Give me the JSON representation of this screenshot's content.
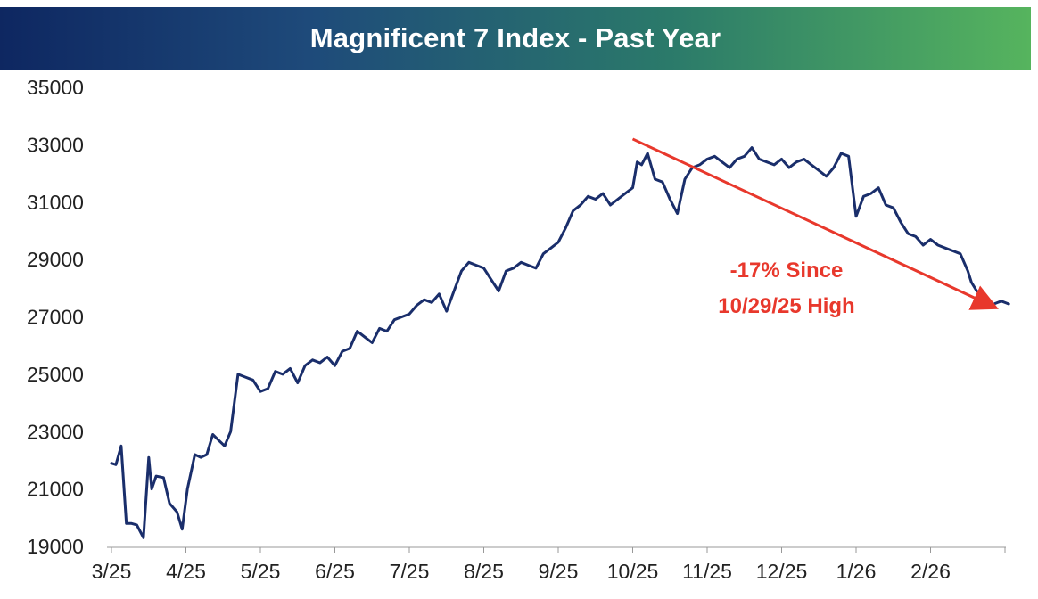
{
  "chart_data": {
    "type": "line",
    "title": "Magnificent 7 Index - Past Year",
    "xlabel": "",
    "ylabel": "",
    "ylim": [
      19000,
      35000
    ],
    "yticks": [
      19000,
      21000,
      23000,
      25000,
      27000,
      29000,
      31000,
      33000,
      35000
    ],
    "ytick_labels": [
      "19000",
      "21000",
      "23000",
      "25000",
      "27000",
      "29000",
      "31000",
      "33000",
      "35000"
    ],
    "xticks": [
      "3/25",
      "4/25",
      "5/25",
      "6/25",
      "7/25",
      "8/25",
      "9/25",
      "10/25",
      "11/25",
      "12/25",
      "1/26",
      "2/26"
    ],
    "grid": false,
    "legend": "none",
    "line_color": "#1a2e6b",
    "series": [
      {
        "name": "",
        "x_unit": "months since 3/25",
        "x": [
          0,
          0.06,
          0.13,
          0.2,
          0.27,
          0.34,
          0.43,
          0.5,
          0.54,
          0.6,
          0.7,
          0.78,
          0.88,
          0.95,
          1.02,
          1.12,
          1.2,
          1.28,
          1.36,
          1.44,
          1.52,
          1.6,
          1.7,
          1.8,
          1.9,
          2.0,
          2.1,
          2.2,
          2.3,
          2.4,
          2.5,
          2.6,
          2.7,
          2.8,
          2.9,
          3.0,
          3.1,
          3.2,
          3.3,
          3.4,
          3.5,
          3.6,
          3.7,
          3.8,
          3.9,
          4.0,
          4.1,
          4.2,
          4.3,
          4.4,
          4.5,
          4.6,
          4.7,
          4.8,
          4.9,
          5.0,
          5.1,
          5.2,
          5.3,
          5.4,
          5.5,
          5.6,
          5.7,
          5.8,
          5.9,
          6.0,
          6.1,
          6.2,
          6.3,
          6.4,
          6.5,
          6.6,
          6.7,
          6.8,
          6.9,
          7.0,
          7.06,
          7.12,
          7.2,
          7.3,
          7.4,
          7.5,
          7.6,
          7.7,
          7.8,
          7.9,
          8.0,
          8.1,
          8.2,
          8.3,
          8.4,
          8.5,
          8.6,
          8.7,
          8.8,
          8.9,
          9.0,
          9.1,
          9.2,
          9.3,
          9.4,
          9.5,
          9.6,
          9.7,
          9.8,
          9.9,
          10.0,
          10.1,
          10.2,
          10.3,
          10.4,
          10.5,
          10.6,
          10.7,
          10.8,
          10.9,
          11.0,
          11.1,
          11.2,
          11.3,
          11.4,
          11.5,
          11.55,
          11.62,
          11.68,
          11.74,
          11.8,
          11.85,
          11.9,
          11.95,
          12.0,
          12.05
        ],
        "values": [
          21900,
          21850,
          22500,
          19800,
          19800,
          19750,
          19300,
          22100,
          21000,
          21450,
          21400,
          20500,
          20200,
          19600,
          21000,
          22200,
          22100,
          22200,
          22900,
          22700,
          22500,
          23000,
          25000,
          24900,
          24800,
          24400,
          24500,
          25100,
          25000,
          25200,
          24700,
          25300,
          25500,
          25400,
          25600,
          25300,
          25800,
          25900,
          26500,
          26300,
          26100,
          26600,
          26500,
          26900,
          27000,
          27100,
          27400,
          27600,
          27500,
          27800,
          27200,
          27900,
          28600,
          28900,
          28800,
          28700,
          28300,
          27900,
          28600,
          28700,
          28900,
          28800,
          28700,
          29200,
          29400,
          29600,
          30100,
          30700,
          30900,
          31200,
          31100,
          31300,
          30900,
          31100,
          31300,
          31500,
          32400,
          32300,
          32700,
          31800,
          31700,
          31100,
          30600,
          31800,
          32200,
          32300,
          32500,
          32600,
          32400,
          32200,
          32500,
          32600,
          32900,
          32500,
          32400,
          32300,
          32500,
          32200,
          32400,
          32500,
          32300,
          32100,
          31900,
          32200,
          32700,
          32600,
          30500,
          31200,
          31300,
          31500,
          30900,
          30800,
          30300,
          29900,
          29800,
          29500,
          29700,
          29500,
          29400,
          29300,
          29200,
          28600,
          28200,
          27900,
          27800,
          27600,
          27400,
          27450,
          27500,
          27550,
          27500,
          27450
        ]
      }
    ],
    "annotations": [
      {
        "text_lines": [
          "-17% Since",
          "10/29/25 High"
        ],
        "color": "#e8382c",
        "arrow_from": {
          "x": 7.0,
          "y": 33200
        },
        "arrow_to": {
          "x": 11.85,
          "y": 27350
        }
      }
    ]
  }
}
